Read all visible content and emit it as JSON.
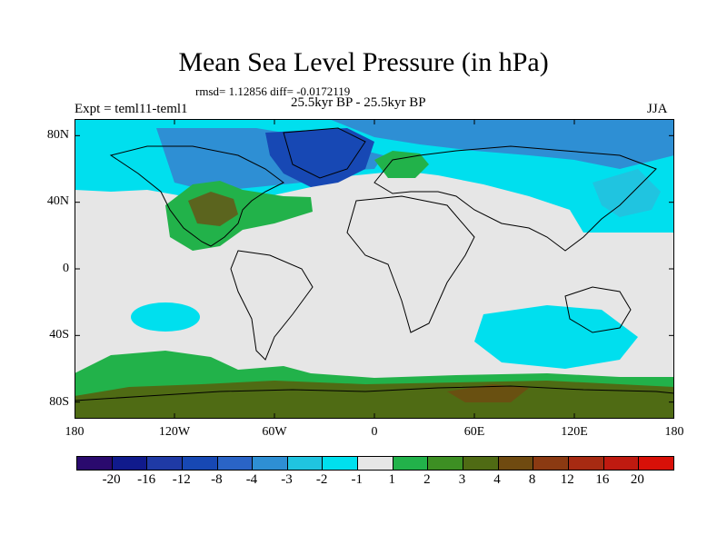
{
  "title": "Mean Sea Level Pressure (in hPa)",
  "stats": "rmsd= 1.12856 diff= -0.0172119",
  "subtitle": "25.5kyr BP - 25.5kyr BP",
  "experiment": "Expt = teml11-teml1",
  "season": "JJA",
  "y_axis": {
    "ticks": [
      {
        "label": "80N",
        "lat": 80
      },
      {
        "label": "40N",
        "lat": 40
      },
      {
        "label": "0",
        "lat": 0
      },
      {
        "label": "40S",
        "lat": -40
      },
      {
        "label": "80S",
        "lat": -80
      }
    ]
  },
  "x_axis": {
    "ticks": [
      {
        "label": "180",
        "lon": -180
      },
      {
        "label": "120W",
        "lon": -120
      },
      {
        "label": "60W",
        "lon": -60
      },
      {
        "label": "0",
        "lon": 0
      },
      {
        "label": "60E",
        "lon": 60
      },
      {
        "label": "120E",
        "lon": 120
      },
      {
        "label": "180",
        "lon": 180
      }
    ]
  },
  "colorbar": {
    "boundary_labels": [
      "-20",
      "-16",
      "-12",
      "-8",
      "-4",
      "-3",
      "-2",
      "-1",
      "1",
      "2",
      "3",
      "4",
      "8",
      "12",
      "16",
      "20"
    ],
    "colors": [
      "#2a0a6e",
      "#101a8c",
      "#1f3aa5",
      "#1748b4",
      "#2a64c6",
      "#2e8fd4",
      "#20c4e0",
      "#00e0ee",
      "#e6e6e6",
      "#22b24a",
      "#3d8f23",
      "#4f6b14",
      "#6f4a10",
      "#8b3a12",
      "#a72a12",
      "#bf1a10",
      "#d81008"
    ]
  }
}
